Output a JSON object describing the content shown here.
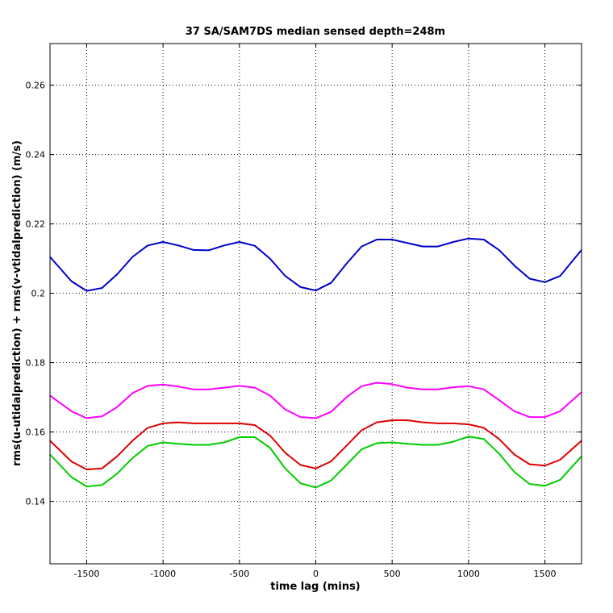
{
  "chart_data": {
    "type": "line",
    "title": "37 SA/SAM7DS median sensed depth=248m",
    "xlabel": "time lag (mins)",
    "ylabel": "rms(u-utidalprediction) + rms(v-vtidalprediction) (m/s)",
    "xlim": [
      -1740,
      1740
    ],
    "ylim": [
      0.122,
      0.272
    ],
    "xticks": [
      -1500,
      -1000,
      -500,
      0,
      500,
      1000,
      1500
    ],
    "xtick_labels": [
      "-1500",
      "-1000",
      "-500",
      "0",
      "500",
      "1000",
      "1500"
    ],
    "yticks": [
      0.14,
      0.16,
      0.18,
      0.2,
      0.22,
      0.24,
      0.26
    ],
    "ytick_labels": [
      "0.14",
      "0.16",
      "0.18",
      "0.2",
      "0.22",
      "0.24",
      "0.26"
    ],
    "grid": true,
    "x": [
      -1740,
      -1600,
      -1500,
      -1400,
      -1300,
      -1200,
      -1100,
      -1000,
      -900,
      -800,
      -700,
      -600,
      -500,
      -400,
      -300,
      -200,
      -100,
      0,
      100,
      200,
      300,
      400,
      500,
      600,
      700,
      800,
      900,
      1000,
      1100,
      1200,
      1300,
      1400,
      1500,
      1600,
      1740
    ],
    "series": [
      {
        "name": "blue",
        "color": "#0000cc",
        "values": [
          0.2105,
          0.2035,
          0.2007,
          0.2015,
          0.2055,
          0.2105,
          0.2138,
          0.2148,
          0.2138,
          0.2125,
          0.2124,
          0.2138,
          0.2148,
          0.2137,
          0.21,
          0.205,
          0.2018,
          0.2008,
          0.203,
          0.2085,
          0.2135,
          0.2155,
          0.2155,
          0.2145,
          0.2135,
          0.2135,
          0.2148,
          0.2158,
          0.2155,
          0.2125,
          0.208,
          0.2042,
          0.2032,
          0.205,
          0.2125
        ]
      },
      {
        "name": "magenta",
        "color": "#ff00ff",
        "values": [
          0.1705,
          0.166,
          0.164,
          0.1645,
          0.1672,
          0.1712,
          0.1733,
          0.1737,
          0.1731,
          0.1723,
          0.1723,
          0.1728,
          0.1733,
          0.1728,
          0.1705,
          0.1665,
          0.1643,
          0.164,
          0.1658,
          0.17,
          0.1732,
          0.1742,
          0.1738,
          0.1728,
          0.1723,
          0.1723,
          0.1729,
          0.1732,
          0.1723,
          0.1692,
          0.166,
          0.1643,
          0.1643,
          0.166,
          0.1715
        ]
      },
      {
        "name": "red",
        "color": "#dd0000",
        "values": [
          0.1575,
          0.1515,
          0.1492,
          0.1495,
          0.153,
          0.1575,
          0.1612,
          0.1625,
          0.1628,
          0.1625,
          0.1625,
          0.1625,
          0.1625,
          0.162,
          0.159,
          0.154,
          0.1505,
          0.1495,
          0.1515,
          0.156,
          0.1605,
          0.1628,
          0.1634,
          0.1634,
          0.1628,
          0.1625,
          0.1625,
          0.1622,
          0.1612,
          0.158,
          0.1535,
          0.1507,
          0.1503,
          0.152,
          0.1575
        ]
      },
      {
        "name": "green",
        "color": "#00cc00",
        "values": [
          0.1535,
          0.147,
          0.1443,
          0.1447,
          0.148,
          0.1525,
          0.156,
          0.157,
          0.1566,
          0.1563,
          0.1563,
          0.157,
          0.1585,
          0.1585,
          0.1555,
          0.1495,
          0.1452,
          0.144,
          0.146,
          0.1505,
          0.155,
          0.1568,
          0.157,
          0.1566,
          0.1563,
          0.1563,
          0.1572,
          0.1587,
          0.158,
          0.1538,
          0.1485,
          0.145,
          0.1445,
          0.1462,
          0.153
        ]
      }
    ]
  }
}
